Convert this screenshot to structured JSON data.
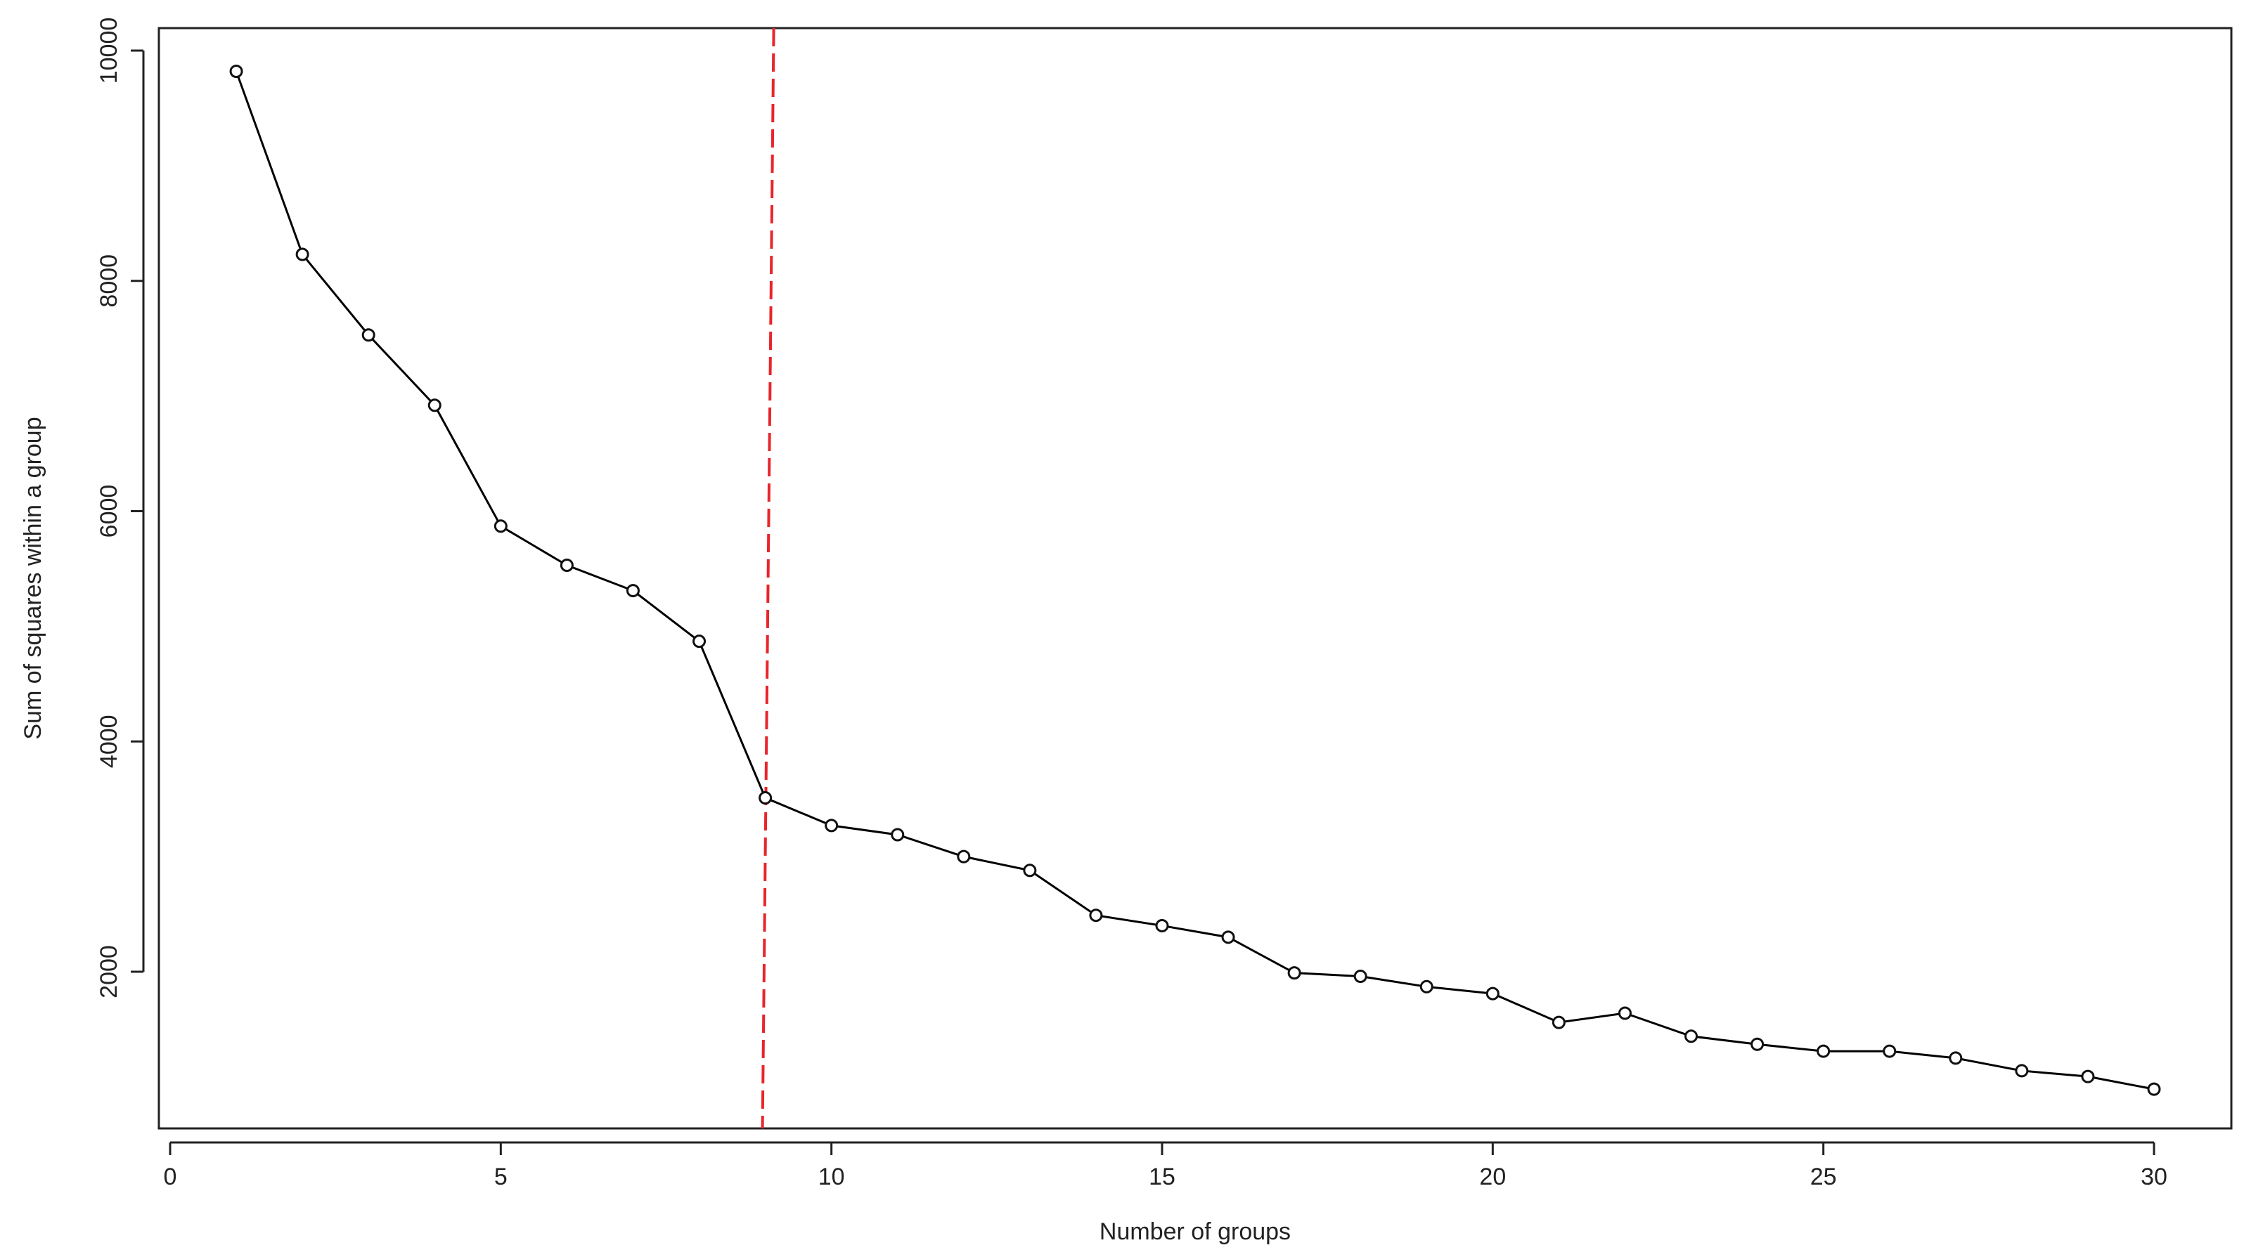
{
  "chart_data": {
    "type": "line",
    "title": "",
    "xlabel": "Number of groups",
    "ylabel": "Sum of squares within a group",
    "xlim": [
      0,
      31
    ],
    "ylim": [
      800,
      10200
    ],
    "x_ticks": [
      0,
      5,
      10,
      15,
      20,
      25,
      30
    ],
    "x_tick_labels": [
      "0",
      "5",
      "10",
      "15",
      "20",
      "25",
      "30"
    ],
    "y_ticks": [
      2000,
      4000,
      6000,
      8000,
      10000
    ],
    "y_tick_labels": [
      "2000",
      "4000",
      "6000",
      "8000",
      "10000"
    ],
    "grid": false,
    "legend": "none",
    "marker": "open-circle",
    "line_color": "#000000",
    "reference_line": {
      "axis": "x",
      "value": 9,
      "style": "dashed",
      "color": "#e8252b"
    },
    "series": [
      {
        "x": [
          1,
          2,
          3,
          4,
          5,
          6,
          7,
          8,
          9,
          10,
          11,
          12,
          13,
          14,
          15,
          16,
          17,
          18,
          19,
          20,
          21,
          22,
          23,
          24,
          25,
          26,
          27,
          28,
          29,
          30
        ],
        "values": [
          9820,
          8230,
          7530,
          6920,
          5870,
          5530,
          5310,
          4870,
          3510,
          3270,
          3190,
          3000,
          2880,
          2490,
          2400,
          2300,
          1990,
          1960,
          1870,
          1810,
          1560,
          1640,
          1440,
          1370,
          1310,
          1310,
          1250,
          1140,
          1090,
          980
        ]
      }
    ]
  }
}
